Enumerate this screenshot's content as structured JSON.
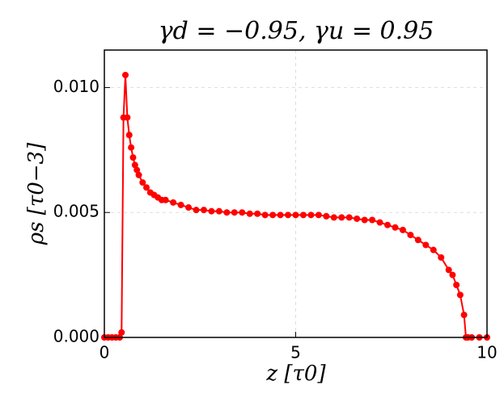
{
  "chart_data": {
    "type": "line",
    "title": "γd = −0.95, γu = 0.95",
    "x_label": "z [τ0]",
    "y_label": "ρs [τ0−3]",
    "x": [
      0,
      0.1,
      0.2,
      0.3,
      0.4,
      0.45,
      0.5,
      0.55,
      0.6,
      0.65,
      0.7,
      0.75,
      0.8,
      0.85,
      0.9,
      1.0,
      1.1,
      1.2,
      1.3,
      1.4,
      1.5,
      1.6,
      1.8,
      2.0,
      2.2,
      2.4,
      2.6,
      2.8,
      3.0,
      3.2,
      3.4,
      3.6,
      3.8,
      4.0,
      4.2,
      4.4,
      4.6,
      4.8,
      5.0,
      5.2,
      5.4,
      5.6,
      5.8,
      6.0,
      6.2,
      6.4,
      6.6,
      6.8,
      7.0,
      7.2,
      7.4,
      7.6,
      7.8,
      8.0,
      8.2,
      8.4,
      8.6,
      8.8,
      9.0,
      9.1,
      9.2,
      9.3,
      9.4,
      9.45,
      9.5,
      9.6,
      9.8,
      10.0
    ],
    "series": [
      {
        "color": "#ff0000",
        "values": [
          0,
          0,
          0,
          0,
          0,
          0.0002,
          0.0088,
          0.0105,
          0.0088,
          0.0081,
          0.0076,
          0.0072,
          0.0069,
          0.0067,
          0.0065,
          0.0062,
          0.006,
          0.0058,
          0.0057,
          0.0056,
          0.0055,
          0.0055,
          0.0054,
          0.0053,
          0.0052,
          0.0051,
          0.0051,
          0.00505,
          0.00505,
          0.005,
          0.005,
          0.005,
          0.00495,
          0.00495,
          0.0049,
          0.0049,
          0.0049,
          0.0049,
          0.0049,
          0.0049,
          0.0049,
          0.0049,
          0.00485,
          0.0048,
          0.0048,
          0.0048,
          0.00475,
          0.0047,
          0.0047,
          0.0046,
          0.0045,
          0.0044,
          0.0043,
          0.0041,
          0.0039,
          0.0037,
          0.0035,
          0.0032,
          0.0027,
          0.0025,
          0.0021,
          0.0017,
          0.0009,
          0,
          0,
          0,
          0,
          0
        ]
      }
    ],
    "xlim": [
      0,
      10
    ],
    "xticks": [
      0,
      5,
      10
    ],
    "ylim": [
      0,
      0.0115
    ],
    "yticks": [
      {
        "value": 0,
        "label": "0.000"
      },
      {
        "value": 0.005,
        "label": "0.005"
      },
      {
        "value": 0.01,
        "label": "0.010"
      }
    ],
    "grid": true
  }
}
